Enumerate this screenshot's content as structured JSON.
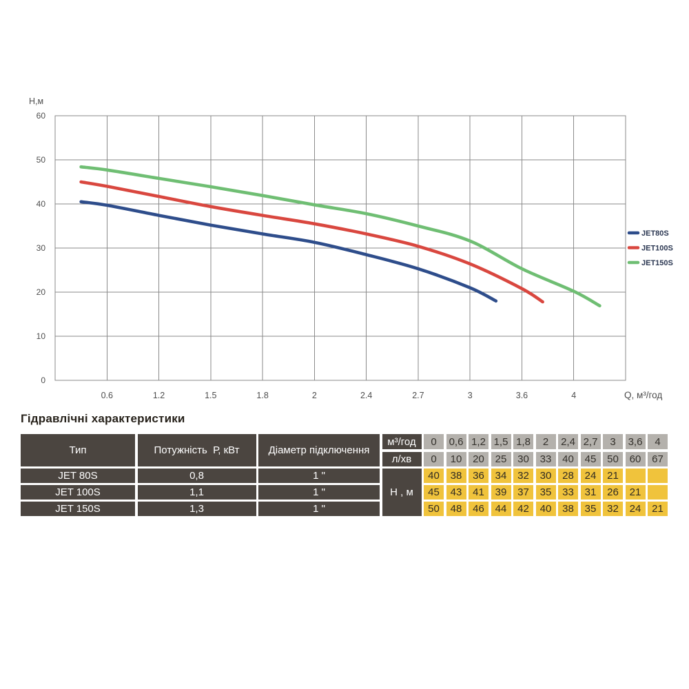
{
  "section": {
    "title": "Гідравлічні характеристики"
  },
  "chart_data": {
    "type": "line",
    "title": "",
    "x_label": "Q, м³/год",
    "y_label": "Н,м",
    "ylim": [
      0,
      60
    ],
    "y_ticks": [
      0,
      10,
      20,
      30,
      40,
      50,
      60
    ],
    "x_categories": [
      0,
      0.6,
      1.2,
      1.5,
      1.8,
      2,
      2.4,
      2.7,
      3,
      3.6,
      4
    ],
    "x_tick_labels": [
      "0.6",
      "1.2",
      "1.5",
      "1.8",
      "2",
      "2.4",
      "2.7",
      "3",
      "3.6",
      "4"
    ],
    "grid": true,
    "legend_position": "right-middle",
    "grid_color": "#8a8a8a",
    "tick_color": "#4d4d4d",
    "legend_text_color": "#2b3752",
    "series": [
      {
        "name": "JET80S",
        "color": "#2e4d8b",
        "h_at_categories": [
          40,
          38,
          36,
          34,
          32,
          30,
          28,
          24,
          21,
          null,
          null
        ],
        "curve_points": [
          [
            0.5,
            40.5
          ],
          [
            1,
            39.7
          ],
          [
            2,
            37.4
          ],
          [
            3,
            35.2
          ],
          [
            4,
            33.2
          ],
          [
            5,
            31.3
          ],
          [
            6,
            28.5
          ],
          [
            7,
            25.3
          ],
          [
            8,
            21.0
          ],
          [
            8.5,
            18.0
          ]
        ]
      },
      {
        "name": "JET100S",
        "color": "#d9473f",
        "h_at_categories": [
          45,
          43,
          41,
          39,
          37,
          35,
          33,
          31,
          26,
          21,
          null
        ],
        "curve_points": [
          [
            0.5,
            45.0
          ],
          [
            1,
            44.0
          ],
          [
            2,
            41.7
          ],
          [
            3,
            39.4
          ],
          [
            4,
            37.4
          ],
          [
            5,
            35.5
          ],
          [
            6,
            33.2
          ],
          [
            7,
            30.4
          ],
          [
            8,
            26.4
          ],
          [
            9,
            20.8
          ],
          [
            9.4,
            17.8
          ]
        ]
      },
      {
        "name": "JET150S",
        "color": "#6fbe73",
        "h_at_categories": [
          50,
          48,
          46,
          44,
          42,
          40,
          38,
          35,
          32,
          24,
          21
        ],
        "curve_points": [
          [
            0.5,
            48.4
          ],
          [
            1,
            47.7
          ],
          [
            2,
            45.8
          ],
          [
            3,
            43.9
          ],
          [
            4,
            41.9
          ],
          [
            5,
            39.8
          ],
          [
            6,
            37.8
          ],
          [
            7,
            35.0
          ],
          [
            8,
            31.6
          ],
          [
            9,
            25.3
          ],
          [
            10,
            20.2
          ],
          [
            10.5,
            16.9
          ]
        ]
      }
    ]
  },
  "table": {
    "columns": [
      "Тип",
      "Потужність  Р, кВт",
      "Діаметр підключення"
    ],
    "m3h_label": "м³/год",
    "lmin_label": "л/хв",
    "h_label": "Н , м",
    "m3h_values": [
      "0",
      "0,6",
      "1,2",
      "1,5",
      "1,8",
      "2",
      "2,4",
      "2,7",
      "3",
      "3,6",
      "4"
    ],
    "lmin_values": [
      "0",
      "10",
      "20",
      "25",
      "30",
      "33",
      "40",
      "45",
      "50",
      "60",
      "67"
    ],
    "rows": [
      {
        "type": "JET 80S",
        "power": "0,8",
        "diameter": "1 \"",
        "h_values": [
          "40",
          "38",
          "36",
          "34",
          "32",
          "30",
          "28",
          "24",
          "21",
          "",
          ""
        ]
      },
      {
        "type": "JET 100S",
        "power": "1,1",
        "diameter": "1 \"",
        "h_values": [
          "45",
          "43",
          "41",
          "39",
          "37",
          "35",
          "33",
          "31",
          "26",
          "21",
          ""
        ]
      },
      {
        "type": "JET 150S",
        "power": "1,3",
        "diameter": "1 \"",
        "h_values": [
          "50",
          "48",
          "46",
          "44",
          "42",
          "40",
          "38",
          "35",
          "32",
          "24",
          "21"
        ]
      }
    ]
  }
}
